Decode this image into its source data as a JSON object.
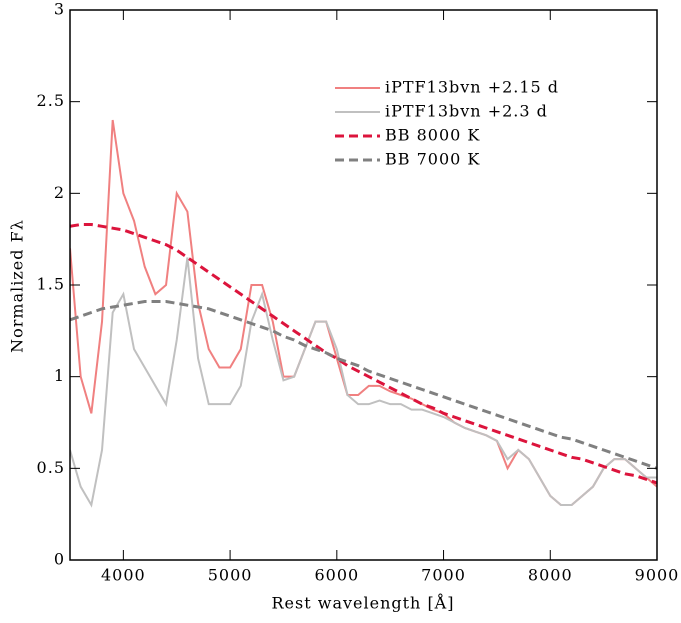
{
  "chart_data": {
    "type": "line",
    "xlabel": "Rest wavelength [Å]",
    "ylabel": "Normalized Fλ",
    "x": [
      3500,
      3600,
      3700,
      3800,
      3900,
      4000,
      4100,
      4200,
      4300,
      4400,
      4500,
      4600,
      4700,
      4800,
      4900,
      5000,
      5100,
      5200,
      5300,
      5400,
      5500,
      5600,
      5700,
      5800,
      5900,
      6000,
      6100,
      6200,
      6300,
      6400,
      6500,
      6600,
      6700,
      6800,
      6900,
      7000,
      7100,
      7200,
      7300,
      7400,
      7500,
      7600,
      7700,
      7800,
      7900,
      8000,
      8100,
      8200,
      8300,
      8400,
      8500,
      8600,
      8700,
      8800,
      8900,
      9000
    ],
    "series": [
      {
        "name": "iPTF13bvn +2.15 d",
        "color": "#f08080",
        "dash": false,
        "values": [
          1.7,
          1.0,
          0.8,
          1.3,
          2.4,
          2.0,
          1.85,
          1.6,
          1.45,
          1.5,
          2.0,
          1.9,
          1.4,
          1.15,
          1.05,
          1.05,
          1.15,
          1.5,
          1.5,
          1.3,
          1.0,
          1.0,
          1.15,
          1.3,
          1.3,
          1.1,
          0.9,
          0.9,
          0.95,
          0.95,
          0.92,
          0.9,
          0.88,
          0.85,
          0.82,
          0.8,
          0.75,
          0.72,
          0.7,
          0.68,
          0.65,
          0.5,
          0.6,
          0.55,
          0.45,
          0.35,
          0.3,
          0.3,
          0.35,
          0.4,
          0.5,
          0.55,
          0.55,
          0.5,
          0.45,
          0.4
        ]
      },
      {
        "name": "iPTF13bvn +2.3 d",
        "color": "#c0c0c0",
        "dash": false,
        "values": [
          0.6,
          0.4,
          0.3,
          0.6,
          1.35,
          1.45,
          1.15,
          1.05,
          0.95,
          0.85,
          1.2,
          1.65,
          1.1,
          0.85,
          0.85,
          0.85,
          0.95,
          1.3,
          1.45,
          1.2,
          0.98,
          1.0,
          1.15,
          1.3,
          1.3,
          1.15,
          0.9,
          0.85,
          0.85,
          0.87,
          0.85,
          0.85,
          0.82,
          0.82,
          0.8,
          0.78,
          0.75,
          0.72,
          0.7,
          0.68,
          0.65,
          0.55,
          0.6,
          0.55,
          0.45,
          0.35,
          0.3,
          0.3,
          0.35,
          0.4,
          0.5,
          0.55,
          0.55,
          0.5,
          0.45,
          0.45
        ]
      },
      {
        "name": "BB 8000 K",
        "color": "#dc143c",
        "dash": true,
        "values": [
          1.82,
          1.83,
          1.83,
          1.82,
          1.81,
          1.8,
          1.78,
          1.76,
          1.74,
          1.72,
          1.69,
          1.65,
          1.61,
          1.57,
          1.53,
          1.49,
          1.45,
          1.41,
          1.37,
          1.33,
          1.29,
          1.25,
          1.21,
          1.17,
          1.13,
          1.1,
          1.06,
          1.03,
          1.0,
          0.97,
          0.94,
          0.91,
          0.88,
          0.85,
          0.83,
          0.8,
          0.78,
          0.76,
          0.74,
          0.72,
          0.7,
          0.68,
          0.66,
          0.64,
          0.62,
          0.6,
          0.58,
          0.56,
          0.55,
          0.53,
          0.51,
          0.49,
          0.47,
          0.46,
          0.44,
          0.42
        ]
      },
      {
        "name": "BB 7000 K",
        "color": "#808080",
        "dash": true,
        "values": [
          1.31,
          1.33,
          1.35,
          1.37,
          1.38,
          1.39,
          1.4,
          1.41,
          1.41,
          1.41,
          1.4,
          1.39,
          1.38,
          1.37,
          1.35,
          1.33,
          1.31,
          1.29,
          1.27,
          1.25,
          1.22,
          1.2,
          1.17,
          1.15,
          1.13,
          1.1,
          1.08,
          1.06,
          1.03,
          1.01,
          0.99,
          0.97,
          0.95,
          0.93,
          0.91,
          0.89,
          0.87,
          0.85,
          0.83,
          0.81,
          0.79,
          0.77,
          0.75,
          0.73,
          0.71,
          0.69,
          0.67,
          0.66,
          0.64,
          0.62,
          0.6,
          0.58,
          0.56,
          0.54,
          0.52,
          0.5
        ]
      }
    ],
    "xlim": [
      3500,
      9000
    ],
    "xticks": [
      4000,
      5000,
      6000,
      7000,
      8000,
      9000
    ],
    "ylim": [
      0,
      3
    ],
    "yticks": [
      0,
      0.5,
      1,
      1.5,
      2,
      2.5,
      3
    ],
    "legend": "upper right",
    "grid": false
  }
}
